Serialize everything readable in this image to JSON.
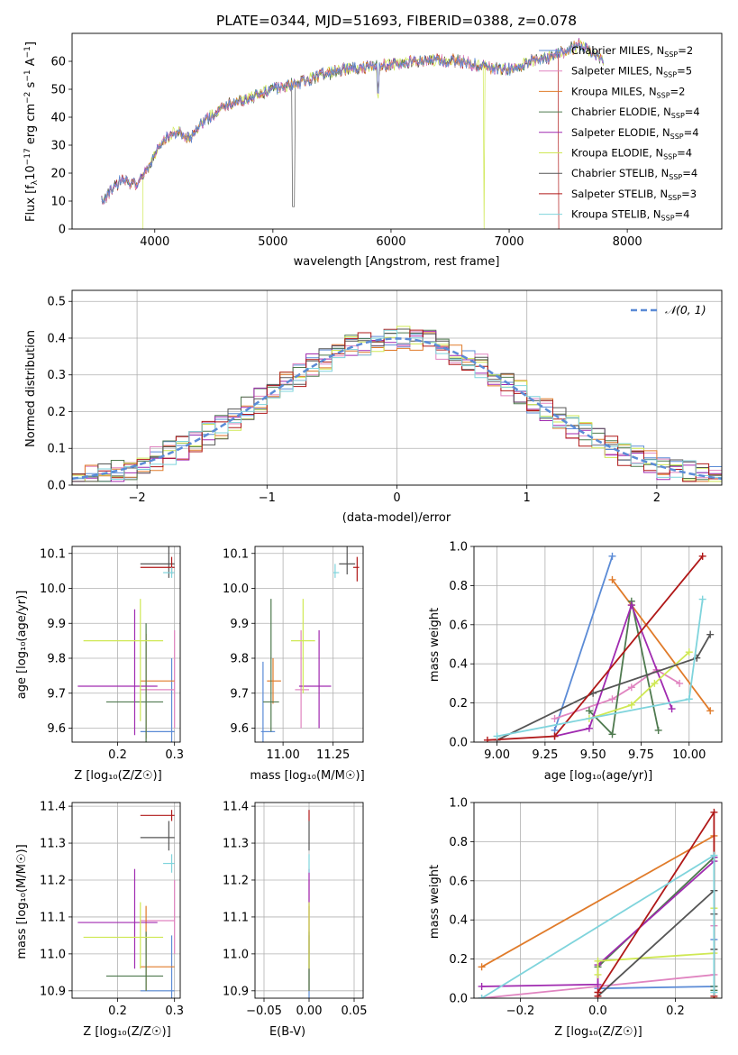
{
  "colors": [
    "#5b8bd6",
    "#e084c0",
    "#e07b2a",
    "#4f7a4f",
    "#a02ab0",
    "#cfe854",
    "#555555",
    "#b01818",
    "#7fd4dc"
  ],
  "chart_data": [
    {
      "id": "spectrum",
      "type": "line",
      "title": "PLATE=0344, MJD=51693, FIBERID=0388, z=0.078",
      "xlabel": "wavelength [Angstrom, rest frame]",
      "ylabel_parts": [
        "Flux [f",
        "λ",
        "10",
        "−17",
        " erg cm",
        "−2",
        " s",
        "−1",
        " A",
        "−1",
        "]"
      ],
      "xlim": [
        3300,
        8800
      ],
      "ylim": [
        0,
        70
      ],
      "xticks": [
        4000,
        5000,
        6000,
        7000,
        8000
      ],
      "yticks": [
        0,
        10,
        20,
        30,
        40,
        50,
        60
      ],
      "grid": false,
      "legend_position": "top-right",
      "series": [
        {
          "name": "Chabrier MILES",
          "nssp": "2"
        },
        {
          "name": "Salpeter MILES",
          "nssp": "5"
        },
        {
          "name": "Kroupa MILES",
          "nssp": "2"
        },
        {
          "name": "Chabrier ELODIE",
          "nssp": "4"
        },
        {
          "name": "Salpeter ELODIE",
          "nssp": "4"
        },
        {
          "name": "Kroupa ELODIE",
          "nssp": "4"
        },
        {
          "name": "Chabrier STELIB",
          "nssp": "4"
        },
        {
          "name": "Salpeter STELIB",
          "nssp": "3"
        },
        {
          "name": "Kroupa STELIB",
          "nssp": "4"
        }
      ],
      "continuum": {
        "x": [
          3550,
          3700,
          3850,
          3950,
          4000,
          4100,
          4200,
          4300,
          4400,
          4600,
          4800,
          5000,
          5200,
          5400,
          5600,
          5800,
          6000,
          6200,
          6400,
          6600,
          6800,
          7000,
          7200,
          7400,
          7600,
          7800
        ],
        "y": [
          10,
          17,
          16,
          22,
          27,
          33,
          35,
          32,
          38,
          44,
          47,
          50,
          52,
          55,
          57,
          58,
          59,
          60,
          60,
          60,
          58,
          57,
          60,
          62,
          66,
          60
        ]
      }
    },
    {
      "id": "residuals",
      "type": "line",
      "xlabel": "(data-model)/error",
      "ylabel": "Normed distribution",
      "xlim": [
        -2.5,
        2.5
      ],
      "ylim": [
        0,
        0.53
      ],
      "xticks": [
        -2,
        -1,
        0,
        1,
        2
      ],
      "yticks": [
        0.0,
        0.1,
        0.2,
        0.3,
        0.4,
        0.5
      ],
      "grid": true,
      "legend": "𝒩(0, 1)",
      "legend_position": "top-right"
    },
    {
      "id": "age_vs_Z",
      "type": "scatter",
      "xlabel": "Z [log₁₀(Z/Z☉)]",
      "ylabel": "age  [log₁₀(age/yr)]",
      "xlim": [
        0.12,
        0.31
      ],
      "ylim": [
        9.56,
        10.12
      ],
      "xticks": [
        0.2,
        0.3
      ],
      "yticks": [
        9.6,
        9.7,
        9.8,
        9.9,
        10.0,
        10.1
      ],
      "grid": true,
      "points": [
        {
          "x": 0.295,
          "y": 9.59,
          "xerr": [
            0.24,
            0.3
          ],
          "yerr": [
            9.56,
            9.8
          ]
        },
        {
          "x": 0.3,
          "y": 9.71,
          "xerr": [
            0.24,
            0.3
          ],
          "yerr": [
            9.6,
            9.88
          ]
        },
        {
          "x": 0.25,
          "y": 9.735,
          "xerr": [
            0.24,
            0.3
          ],
          "yerr": [
            9.57,
            9.87
          ]
        },
        {
          "x": 0.25,
          "y": 9.675,
          "xerr": [
            0.18,
            0.28
          ],
          "yerr": [
            9.56,
            9.9
          ]
        },
        {
          "x": 0.23,
          "y": 9.72,
          "xerr": [
            0.13,
            0.27
          ],
          "yerr": [
            9.58,
            9.94
          ]
        },
        {
          "x": 0.24,
          "y": 9.85,
          "xerr": [
            0.14,
            0.28
          ],
          "yerr": [
            9.62,
            9.97
          ]
        },
        {
          "x": 0.29,
          "y": 10.07,
          "xerr": [
            0.24,
            0.3
          ],
          "yerr": [
            10.03,
            10.13
          ]
        },
        {
          "x": 0.295,
          "y": 10.06,
          "xerr": [
            0.24,
            0.3
          ],
          "yerr": [
            10.04,
            10.09
          ]
        },
        {
          "x": 0.295,
          "y": 10.045,
          "xerr": [
            0.28,
            0.3
          ],
          "yerr": [
            10.03,
            10.06
          ]
        }
      ]
    },
    {
      "id": "age_vs_mass",
      "type": "scatter",
      "xlabel": "mass [log₁₀(M/M☉)]",
      "xlim": [
        10.86,
        11.4
      ],
      "ylim": [
        9.56,
        10.12
      ],
      "xticks": [
        11.0,
        11.25
      ],
      "yticks": [
        9.6,
        9.7,
        9.8,
        9.9,
        10.0,
        10.1
      ],
      "grid": true,
      "points": [
        {
          "x": 10.9,
          "y": 9.59,
          "xerr": [
            10.89,
            10.96
          ],
          "yerr": [
            9.56,
            9.79
          ]
        },
        {
          "x": 11.09,
          "y": 9.71,
          "xerr": [
            11.06,
            11.13
          ],
          "yerr": [
            9.6,
            9.88
          ]
        },
        {
          "x": 10.95,
          "y": 9.735,
          "xerr": [
            10.92,
            10.99
          ],
          "yerr": [
            9.67,
            9.8
          ]
        },
        {
          "x": 10.94,
          "y": 9.675,
          "xerr": [
            10.9,
            10.98
          ],
          "yerr": [
            9.59,
            9.97
          ]
        },
        {
          "x": 11.18,
          "y": 9.72,
          "xerr": [
            11.08,
            11.24
          ],
          "yerr": [
            9.6,
            9.88
          ]
        },
        {
          "x": 11.1,
          "y": 9.85,
          "xerr": [
            11.04,
            11.16
          ],
          "yerr": [
            9.7,
            9.97
          ]
        },
        {
          "x": 11.32,
          "y": 10.07,
          "xerr": [
            11.28,
            11.36
          ],
          "yerr": [
            10.04,
            10.14
          ]
        },
        {
          "x": 11.37,
          "y": 10.06,
          "xerr": [
            11.35,
            11.38
          ],
          "yerr": [
            10.02,
            10.09
          ]
        },
        {
          "x": 11.26,
          "y": 10.045,
          "xerr": [
            11.25,
            11.28
          ],
          "yerr": [
            10.03,
            10.07
          ]
        }
      ]
    },
    {
      "id": "weight_vs_age",
      "type": "line",
      "xlabel": "age  [log₁₀(age/yr)]",
      "ylabel": "mass weight",
      "xlim": [
        8.88,
        10.17
      ],
      "ylim": [
        0,
        1.0
      ],
      "xticks": [
        9.0,
        9.25,
        9.5,
        9.75,
        10.0
      ],
      "yticks": [
        0.0,
        0.2,
        0.4,
        0.6,
        0.8,
        1.0
      ],
      "grid": true,
      "series": [
        {
          "x": [
            9.3,
            9.6
          ],
          "y": [
            0.06,
            0.95
          ]
        },
        {
          "x": [
            9.3,
            9.6,
            9.7,
            9.83,
            9.95
          ],
          "y": [
            0.12,
            0.22,
            0.28,
            0.37,
            0.3
          ]
        },
        {
          "x": [
            9.6,
            9.7,
            10.11
          ],
          "y": [
            0.83,
            0.7,
            0.16
          ]
        },
        {
          "x": [
            9.48,
            9.6,
            9.7,
            9.84
          ],
          "y": [
            0.16,
            0.04,
            0.72,
            0.06
          ]
        },
        {
          "x": [
            9.3,
            9.48,
            9.7,
            9.91
          ],
          "y": [
            0.03,
            0.07,
            0.7,
            0.17
          ]
        },
        {
          "x": [
            9.48,
            9.7,
            9.82,
            10.0
          ],
          "y": [
            0.12,
            0.19,
            0.3,
            0.46
          ]
        },
        {
          "x": [
            9.0,
            9.5,
            10.04,
            10.11
          ],
          "y": [
            0.01,
            0.25,
            0.43,
            0.55
          ]
        },
        {
          "x": [
            8.95,
            9.3,
            10.07
          ],
          "y": [
            0.01,
            0.03,
            0.95
          ]
        },
        {
          "x": [
            9.0,
            10.0,
            10.07
          ],
          "y": [
            0.03,
            0.22,
            0.73
          ]
        }
      ]
    },
    {
      "id": "mass_vs_Z",
      "type": "scatter",
      "xlabel": "Z [log₁₀(Z/Z☉)]",
      "ylabel": "mass [log₁₀(M/M☉)]",
      "xlim": [
        0.12,
        0.31
      ],
      "ylim": [
        10.88,
        11.41
      ],
      "xticks": [
        0.2,
        0.3
      ],
      "yticks": [
        10.9,
        11.0,
        11.1,
        11.2,
        11.3,
        11.4
      ],
      "grid": true,
      "points": [
        {
          "x": 0.295,
          "y": 10.9,
          "xerr": [
            0.24,
            0.3
          ],
          "yerr": [
            10.88,
            11.05
          ]
        },
        {
          "x": 0.3,
          "y": 11.09,
          "xerr": [
            0.24,
            0.3
          ],
          "yerr": [
            11.0,
            11.2
          ]
        },
        {
          "x": 0.25,
          "y": 10.965,
          "xerr": [
            0.24,
            0.3
          ],
          "yerr": [
            10.9,
            11.13
          ]
        },
        {
          "x": 0.25,
          "y": 10.94,
          "xerr": [
            0.18,
            0.28
          ],
          "yerr": [
            10.9,
            11.06
          ]
        },
        {
          "x": 0.23,
          "y": 11.085,
          "xerr": [
            0.13,
            0.27
          ],
          "yerr": [
            10.96,
            11.23
          ]
        },
        {
          "x": 0.24,
          "y": 11.045,
          "xerr": [
            0.14,
            0.28
          ],
          "yerr": [
            10.96,
            11.14
          ]
        },
        {
          "x": 0.29,
          "y": 11.315,
          "xerr": [
            0.24,
            0.3
          ],
          "yerr": [
            11.28,
            11.36
          ]
        },
        {
          "x": 0.295,
          "y": 11.375,
          "xerr": [
            0.24,
            0.3
          ],
          "yerr": [
            11.36,
            11.39
          ]
        },
        {
          "x": 0.295,
          "y": 11.245,
          "xerr": [
            0.28,
            0.3
          ],
          "yerr": [
            11.22,
            11.27
          ]
        }
      ]
    },
    {
      "id": "mass_vs_EBV",
      "type": "scatter",
      "xlabel": "E(B-V)",
      "xlim": [
        -0.06,
        0.06
      ],
      "ylim": [
        10.88,
        11.41
      ],
      "xticks": [
        -0.05,
        0.0,
        0.05
      ],
      "yticks": [
        10.9,
        11.0,
        11.1,
        11.2,
        11.3,
        11.4
      ],
      "grid": true,
      "points": [
        {
          "x": 0.0,
          "y": 10.9,
          "yerr": [
            10.88,
            11.05
          ]
        },
        {
          "x": 0.0,
          "y": 11.09,
          "yerr": [
            11.0,
            11.2
          ]
        },
        {
          "x": 0.0,
          "y": 10.965,
          "yerr": [
            10.9,
            11.13
          ]
        },
        {
          "x": 0.0,
          "y": 10.94,
          "yerr": [
            10.9,
            11.06
          ]
        },
        {
          "x": 0.0,
          "y": 11.085,
          "yerr": [
            10.96,
            11.23
          ]
        },
        {
          "x": 0.0,
          "y": 11.045,
          "yerr": [
            10.96,
            11.14
          ]
        },
        {
          "x": 0.0,
          "y": 11.315,
          "yerr": [
            11.28,
            11.36
          ]
        },
        {
          "x": 0.0,
          "y": 11.375,
          "yerr": [
            11.36,
            11.39
          ]
        },
        {
          "x": 0.0,
          "y": 11.245,
          "yerr": [
            11.22,
            11.27
          ]
        }
      ]
    },
    {
      "id": "weight_vs_Z",
      "type": "line",
      "xlabel": "Z [log₁₀(Z/Z☉)]",
      "ylabel": "mass weight",
      "xlim": [
        -0.32,
        0.32
      ],
      "ylim": [
        0,
        1.0
      ],
      "xticks": [
        -0.2,
        0.0,
        0.2
      ],
      "yticks": [
        0.0,
        0.2,
        0.4,
        0.6,
        0.8,
        1.0
      ],
      "grid": true,
      "series": [
        {
          "x": [
            0.0,
            0.3,
            0.3,
            0.3
          ],
          "y": [
            0.05,
            0.06,
            0.3,
            0.72
          ]
        },
        {
          "x": [
            -0.3,
            0.0,
            0.3,
            0.3
          ],
          "y": [
            0.0,
            0.06,
            0.12,
            0.37
          ]
        },
        {
          "x": [
            -0.3,
            0.3,
            0.3
          ],
          "y": [
            0.16,
            0.83,
            0.0
          ]
        },
        {
          "x": [
            0.0,
            0.3,
            0.3,
            0.3
          ],
          "y": [
            0.16,
            0.72,
            0.04,
            0.06
          ]
        },
        {
          "x": [
            -0.3,
            0.0,
            0.0,
            0.3,
            0.3
          ],
          "y": [
            0.06,
            0.07,
            0.17,
            0.7,
            0.72
          ]
        },
        {
          "x": [
            0.0,
            0.0,
            0.3,
            0.3
          ],
          "y": [
            0.12,
            0.19,
            0.23,
            0.46
          ]
        },
        {
          "x": [
            0.0,
            0.3,
            0.3,
            0.3
          ],
          "y": [
            0.01,
            0.55,
            0.43,
            0.25
          ]
        },
        {
          "x": [
            0.0,
            0.0,
            0.3,
            0.3
          ],
          "y": [
            0.01,
            0.03,
            0.95,
            0.01
          ]
        },
        {
          "x": [
            -0.3,
            0.3,
            0.3
          ],
          "y": [
            0.0,
            0.73,
            0.03
          ]
        }
      ]
    }
  ]
}
